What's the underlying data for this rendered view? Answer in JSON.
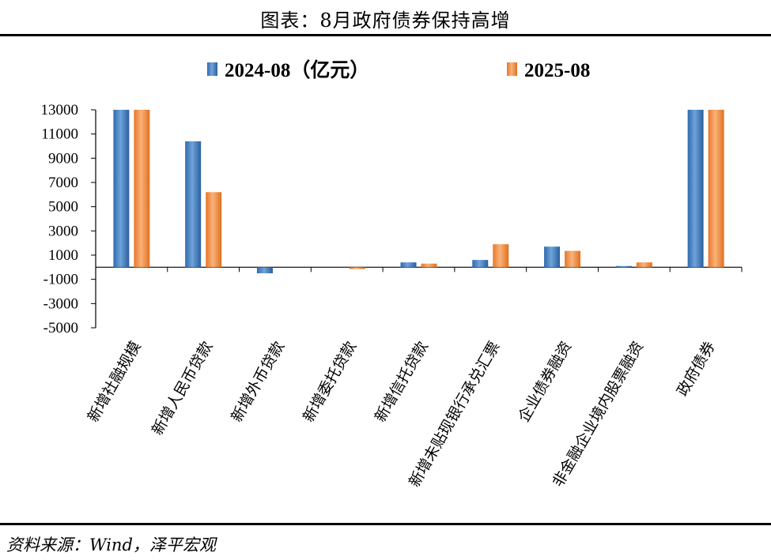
{
  "header": {
    "title": "图表：8月政府债券保持高增"
  },
  "footer": {
    "source": "资料来源：Wind，泽平宏观"
  },
  "chart_data": {
    "type": "bar",
    "categories": [
      "新增社融规模",
      "新增人民币贷款",
      "新增外币贷款",
      "新增委托贷款",
      "新增信托贷款",
      "新增未贴现银行承兑汇票",
      "企业债券融资",
      "非金融企业境内股票融资",
      "政府债券"
    ],
    "series": [
      {
        "name": "2024-08（亿元）",
        "color": "#3F7FC4",
        "values": [
          13000,
          10400,
          -500,
          0,
          400,
          600,
          1700,
          100,
          13000
        ]
      },
      {
        "name": "2025-08",
        "color": "#F08A3C",
        "values": [
          13000,
          6200,
          0,
          -150,
          300,
          1900,
          1350,
          400,
          13000
        ]
      }
    ],
    "yticks": [
      13000,
      11000,
      9000,
      7000,
      5000,
      3000,
      1000,
      -1000,
      -3000,
      -5000
    ],
    "ylim": [
      -5000,
      13000
    ],
    "xlabel": "",
    "ylabel": "",
    "legend": "top-center",
    "grid": false
  }
}
